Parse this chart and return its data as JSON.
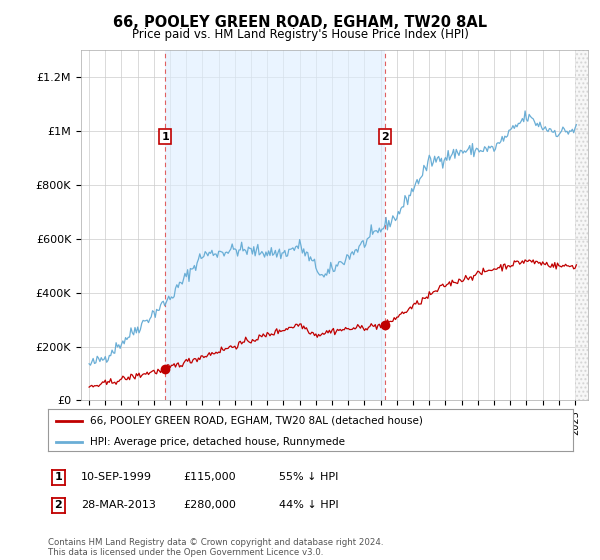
{
  "title1": "66, POOLEY GREEN ROAD, EGHAM, TW20 8AL",
  "title2": "Price paid vs. HM Land Registry's House Price Index (HPI)",
  "ylabel_ticks": [
    "£0",
    "£200K",
    "£400K",
    "£600K",
    "£800K",
    "£1M",
    "£1.2M"
  ],
  "ytick_values": [
    0,
    200000,
    400000,
    600000,
    800000,
    1000000,
    1200000
  ],
  "ylim": [
    0,
    1300000
  ],
  "sale1_year": 1999.708,
  "sale1_price": 115000,
  "sale1_pct": "55% ↓ HPI",
  "sale1_date": "10-SEP-1999",
  "sale2_year": 2013.247,
  "sale2_price": 280000,
  "sale2_pct": "44% ↓ HPI",
  "sale2_date": "28-MAR-2013",
  "legend1": "66, POOLEY GREEN ROAD, EGHAM, TW20 8AL (detached house)",
  "legend2": "HPI: Average price, detached house, Runnymede",
  "footnote": "Contains HM Land Registry data © Crown copyright and database right 2024.\nThis data is licensed under the Open Government Licence v3.0.",
  "hpi_color": "#6aaed6",
  "price_color": "#c00000",
  "vline_color": "#e06060",
  "shade_color": "#ddeeff",
  "background_color": "#ffffff",
  "grid_color": "#cccccc",
  "future_start": 2025.0,
  "xmin": 1994.5,
  "xmax": 2025.8
}
